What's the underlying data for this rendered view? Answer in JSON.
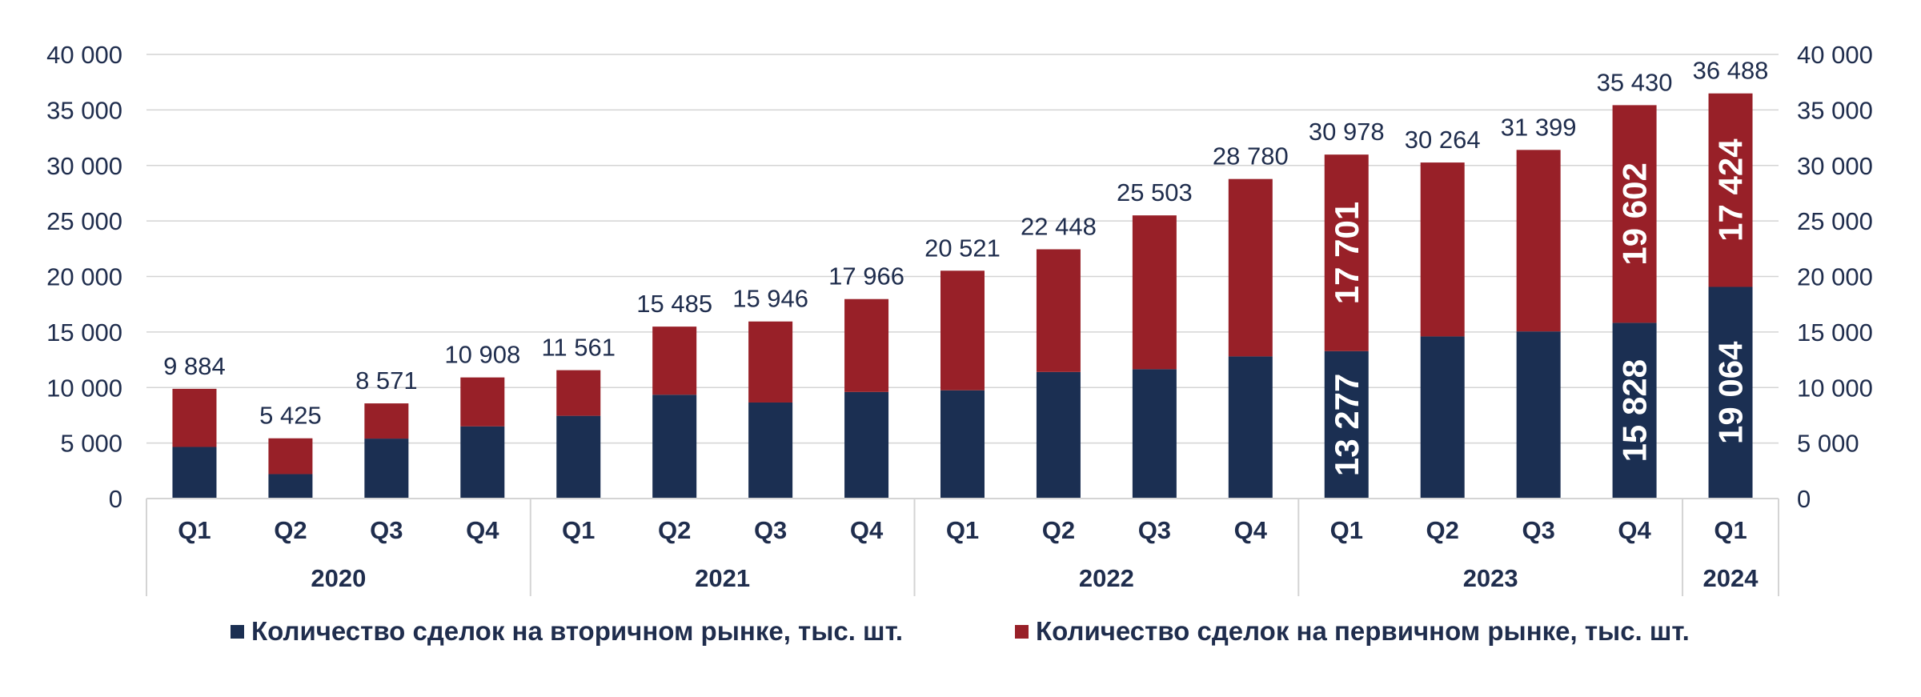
{
  "colors": {
    "secondary": "#1b2f52",
    "primary": "#982028",
    "grid": "#d4d4d4",
    "text": "#1f2d4d",
    "inner_label": "#ffffff"
  },
  "chart_data": {
    "type": "bar",
    "stacked": true,
    "categories": [
      "Q1",
      "Q2",
      "Q3",
      "Q4",
      "Q1",
      "Q2",
      "Q3",
      "Q4",
      "Q1",
      "Q2",
      "Q3",
      "Q4",
      "Q1",
      "Q2",
      "Q3",
      "Q4",
      "Q1"
    ],
    "groups": [
      {
        "label": "2020",
        "count": 4
      },
      {
        "label": "2021",
        "count": 4
      },
      {
        "label": "2022",
        "count": 4
      },
      {
        "label": "2023",
        "count": 4
      },
      {
        "label": "2024",
        "count": 1
      }
    ],
    "series": [
      {
        "name": "Количество сделок на вторичном рынке, тыс. шт.",
        "color_key": "secondary",
        "values": [
          4650,
          2200,
          5400,
          6500,
          7450,
          9350,
          8650,
          9600,
          9750,
          11400,
          11650,
          12800,
          13277,
          14600,
          15050,
          15828,
          19064
        ]
      },
      {
        "name": "Количество сделок на первичном рынке, тыс. шт.",
        "color_key": "primary",
        "values": [
          5234,
          3225,
          3171,
          4408,
          4111,
          6135,
          7296,
          8366,
          10771,
          11048,
          13853,
          15980,
          17701,
          15664,
          16349,
          19602,
          17424
        ]
      }
    ],
    "total_labels": [
      "9 884",
      "5 425",
      "8 571",
      "10 908",
      "11 561",
      "15 485",
      "15 946",
      "17 966",
      "20 521",
      "22 448",
      "25 503",
      "28 780",
      "30 978",
      "30 264",
      "31 399",
      "35 430",
      "36 488"
    ],
    "inner_labels": [
      {
        "index": 12,
        "secondary": "13 277",
        "primary": "17 701"
      },
      {
        "index": 15,
        "secondary": "15 828",
        "primary": "19 602"
      },
      {
        "index": 16,
        "secondary": "19 064",
        "primary": "17 424"
      }
    ],
    "y_ticks": [
      0,
      5000,
      10000,
      15000,
      20000,
      25000,
      30000,
      35000,
      40000
    ],
    "y_tick_labels": [
      "0",
      "5 000",
      "10 000",
      "15 000",
      "20 000",
      "25 000",
      "30 000",
      "35 000",
      "40 000"
    ],
    "ylim": [
      0,
      40000
    ],
    "secondary_y_axis": true,
    "grid": true,
    "legend_position": "bottom"
  }
}
